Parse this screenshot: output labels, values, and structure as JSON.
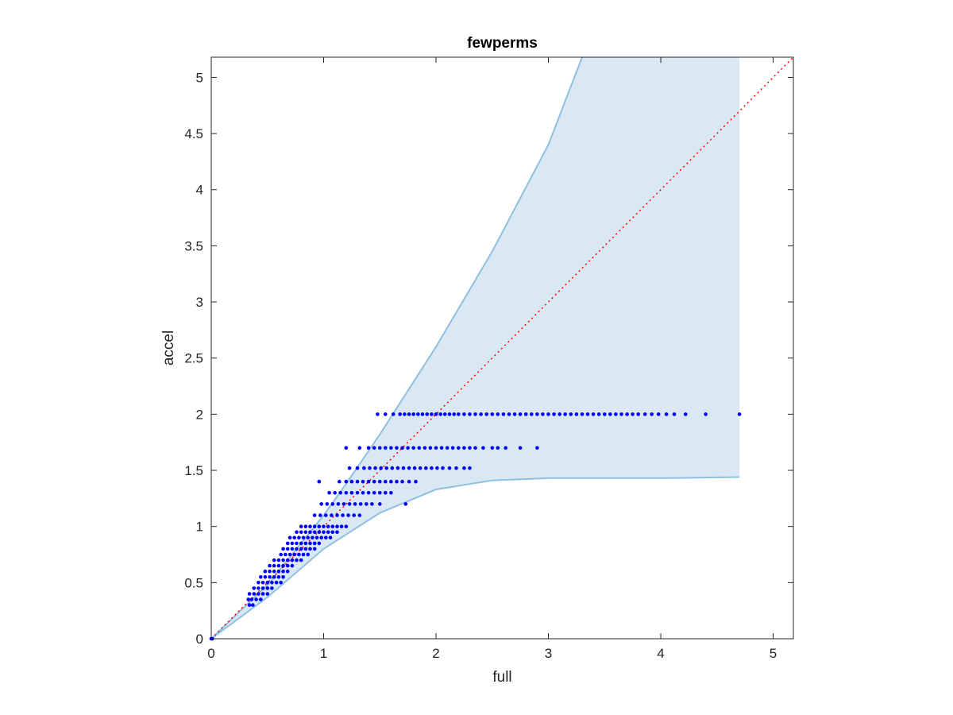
{
  "chart_data": {
    "type": "scatter",
    "title": "fewperms",
    "xlabel": "full",
    "ylabel": "accel",
    "xlim": [
      0,
      5.18
    ],
    "ylim": [
      0,
      5.18
    ],
    "x_ticks": [
      0,
      1,
      2,
      3,
      4,
      5
    ],
    "y_ticks": [
      0,
      0.5,
      1,
      1.5,
      2,
      2.5,
      3,
      3.5,
      4,
      4.5,
      5
    ],
    "x_tick_labels": [
      "0",
      "1",
      "2",
      "3",
      "4",
      "5"
    ],
    "y_tick_labels": [
      "0",
      "0.5",
      "1",
      "1.5",
      "2",
      "2.5",
      "3",
      "3.5",
      "4",
      "4.5",
      "5"
    ],
    "grid": false,
    "colors": {
      "points": "#0000ff",
      "band_fill": "#d9e8f3",
      "band_edge": "#8fc0e0",
      "reference_line": "#ff0000",
      "axes": "#262626"
    },
    "reference_line": {
      "style": "dotted",
      "x": [
        0,
        5.18
      ],
      "y": [
        0,
        5.18
      ]
    },
    "band": {
      "upper": {
        "x": [
          0,
          0.5,
          1.0,
          1.2,
          1.5,
          2.0,
          2.5,
          3.0,
          3.3
        ],
        "y": [
          0,
          0.48,
          1.1,
          1.38,
          1.82,
          2.6,
          3.45,
          4.4,
          5.18
        ]
      },
      "lower": {
        "x": [
          0,
          0.5,
          1.0,
          1.5,
          2.0,
          2.5,
          3.0,
          3.5,
          4.0,
          4.7
        ],
        "y": [
          0,
          0.37,
          0.8,
          1.12,
          1.33,
          1.41,
          1.43,
          1.43,
          1.43,
          1.44
        ]
      },
      "x_max": 4.7
    },
    "series": [
      {
        "rows": [
          {
            "y": 2.0,
            "x": [
              1.48,
              1.55,
              1.62,
              1.68,
              1.72,
              1.76,
              1.8,
              1.84,
              1.88,
              1.92,
              1.96,
              2.0,
              2.04,
              2.08,
              2.12,
              2.16,
              2.2,
              2.25,
              2.3,
              2.35,
              2.4,
              2.45,
              2.5,
              2.55,
              2.6,
              2.65,
              2.7,
              2.75,
              2.8,
              2.85,
              2.9,
              2.95,
              3.0,
              3.05,
              3.1,
              3.15,
              3.2,
              3.25,
              3.3,
              3.35,
              3.4,
              3.45,
              3.5,
              3.55,
              3.6,
              3.65,
              3.7,
              3.75,
              3.8,
              3.86,
              3.92,
              3.98,
              4.05,
              4.12,
              4.22,
              4.4,
              4.7
            ]
          },
          {
            "y": 1.7,
            "x": [
              1.2,
              1.32,
              1.4,
              1.45,
              1.5,
              1.55,
              1.6,
              1.65,
              1.7,
              1.75,
              1.8,
              1.85,
              1.9,
              1.95,
              2.0,
              2.05,
              2.1,
              2.15,
              2.2,
              2.25,
              2.3,
              2.35,
              2.42,
              2.5,
              2.55,
              2.62,
              2.75,
              2.9
            ]
          },
          {
            "y": 1.52,
            "x": [
              1.23,
              1.3,
              1.36,
              1.41,
              1.46,
              1.51,
              1.56,
              1.61,
              1.66,
              1.71,
              1.76,
              1.81,
              1.86,
              1.91,
              1.96,
              2.01,
              2.06,
              2.12,
              2.18,
              2.25,
              2.3
            ]
          },
          {
            "y": 1.4,
            "x": [
              0.96,
              1.14,
              1.2,
              1.25,
              1.3,
              1.35,
              1.4,
              1.45,
              1.5,
              1.55,
              1.6,
              1.65,
              1.7,
              1.76,
              1.82
            ]
          },
          {
            "y": 1.3,
            "x": [
              1.05,
              1.1,
              1.15,
              1.2,
              1.25,
              1.3,
              1.35,
              1.4,
              1.45,
              1.5,
              1.55,
              1.6
            ]
          },
          {
            "y": 1.2,
            "x": [
              0.98,
              1.03,
              1.08,
              1.13,
              1.18,
              1.23,
              1.28,
              1.33,
              1.38,
              1.43,
              1.5,
              1.73
            ]
          },
          {
            "y": 1.1,
            "x": [
              0.92,
              0.97,
              1.02,
              1.07,
              1.12,
              1.17,
              1.22,
              1.27,
              1.32
            ]
          },
          {
            "y": 1.0,
            "x": [
              0.8,
              0.84,
              0.88,
              0.92,
              0.96,
              1.0,
              1.04,
              1.08,
              1.12,
              1.16,
              1.2
            ]
          },
          {
            "y": 0.95,
            "x": [
              0.76,
              0.8,
              0.84,
              0.88,
              0.92,
              0.96,
              1.0,
              1.04,
              1.08,
              1.12
            ]
          },
          {
            "y": 0.9,
            "x": [
              0.7,
              0.74,
              0.78,
              0.82,
              0.86,
              0.9,
              0.94,
              0.98,
              1.02,
              1.06
            ]
          },
          {
            "y": 0.85,
            "x": [
              0.68,
              0.72,
              0.76,
              0.8,
              0.84,
              0.88,
              0.92,
              0.96
            ]
          },
          {
            "y": 0.8,
            "x": [
              0.64,
              0.68,
              0.72,
              0.76,
              0.8,
              0.84,
              0.88,
              0.92
            ]
          },
          {
            "y": 0.75,
            "x": [
              0.62,
              0.66,
              0.7,
              0.74,
              0.78,
              0.82,
              0.86
            ]
          },
          {
            "y": 0.7,
            "x": [
              0.56,
              0.6,
              0.64,
              0.68,
              0.72,
              0.76,
              0.8
            ]
          },
          {
            "y": 0.65,
            "x": [
              0.52,
              0.56,
              0.6,
              0.64,
              0.68,
              0.72
            ]
          },
          {
            "y": 0.6,
            "x": [
              0.48,
              0.52,
              0.56,
              0.6,
              0.64,
              0.68
            ]
          },
          {
            "y": 0.55,
            "x": [
              0.44,
              0.48,
              0.52,
              0.56,
              0.6,
              0.64
            ]
          },
          {
            "y": 0.5,
            "x": [
              0.42,
              0.46,
              0.5,
              0.54,
              0.58,
              0.62
            ]
          },
          {
            "y": 0.45,
            "x": [
              0.38,
              0.42,
              0.46,
              0.5,
              0.54
            ]
          },
          {
            "y": 0.4,
            "x": [
              0.34,
              0.38,
              0.42,
              0.46,
              0.5
            ]
          },
          {
            "y": 0.35,
            "x": [
              0.33,
              0.36,
              0.4,
              0.44
            ]
          },
          {
            "y": 0.3,
            "x": [
              0.34,
              0.37
            ]
          },
          {
            "y": 0.0,
            "x": [
              0.0,
              0.01
            ]
          }
        ]
      }
    ]
  }
}
